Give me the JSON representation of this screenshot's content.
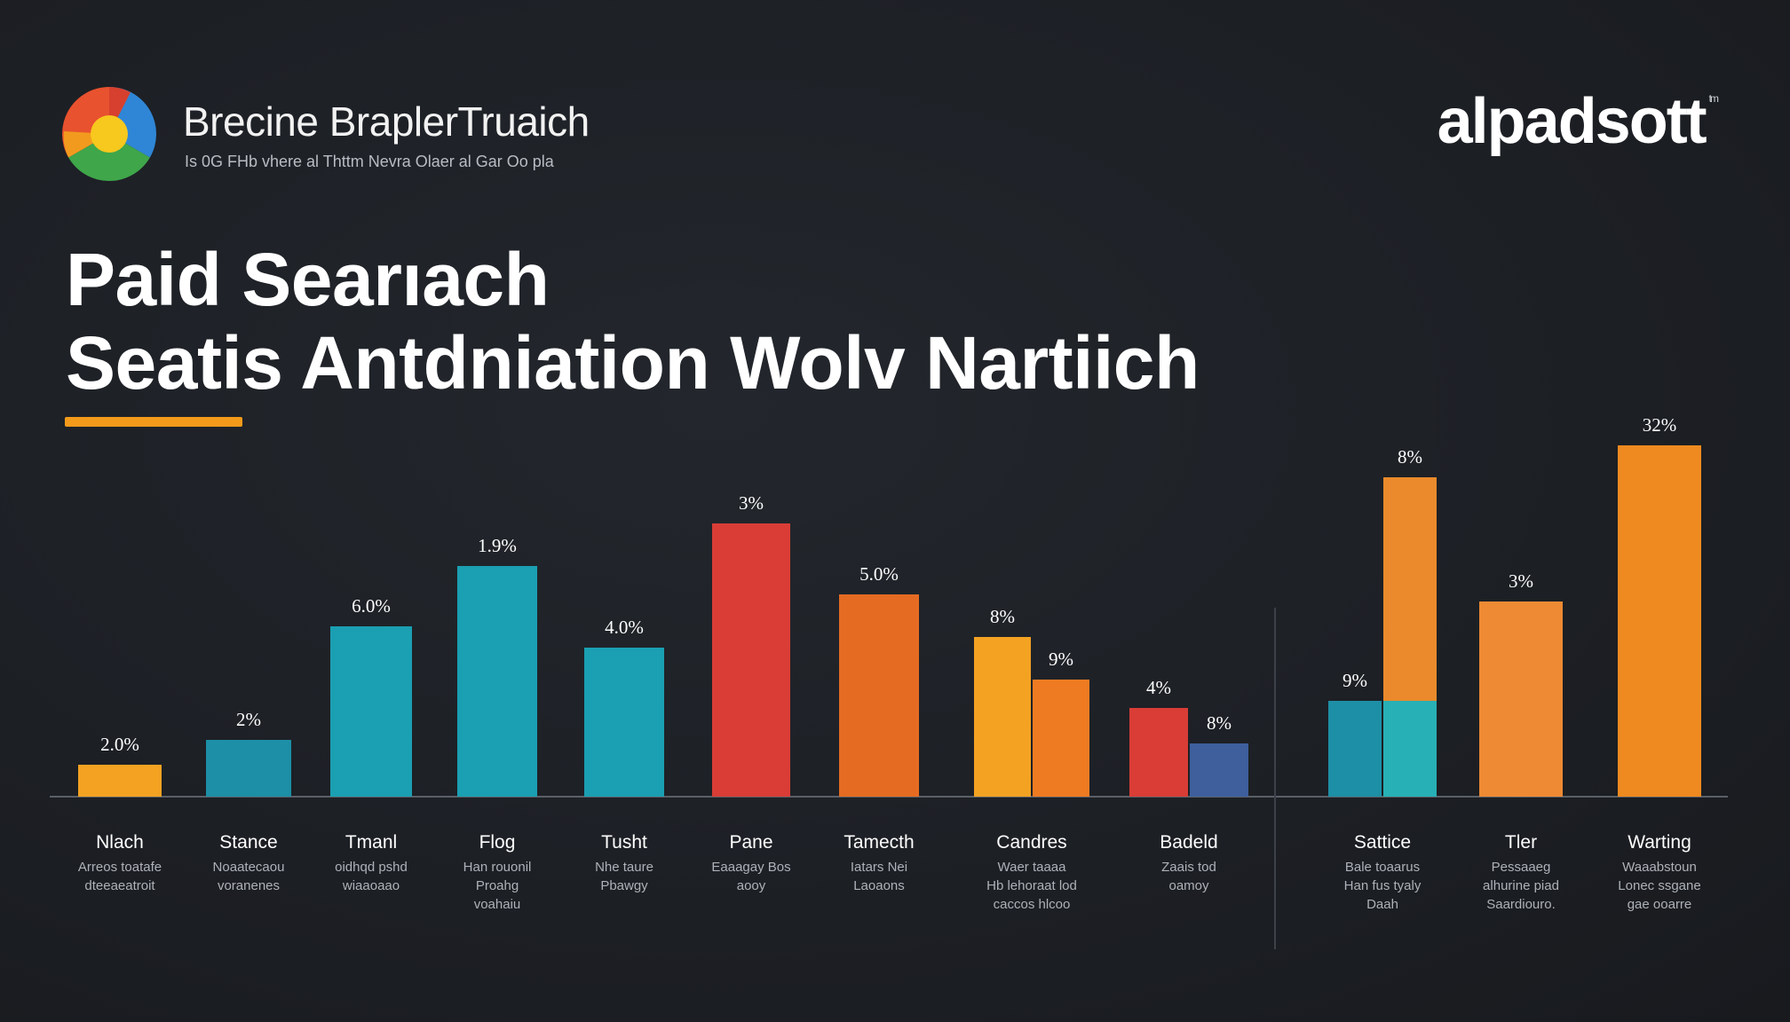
{
  "header": {
    "brand_name": "Brecine BraplerTruaich",
    "brand_tagline": "Is 0G FHb vhere al Thttm Nevra Olaer al Gar Oo pla",
    "company_logo": "alpadsott",
    "company_logo_mark": "tm"
  },
  "title": {
    "line1": "Paid Searıach",
    "line2": "Seatis Antdniation Wolv Nartiich"
  },
  "colors": {
    "background": "#1c1f24",
    "accent": "#f39a1b",
    "teal": "#1d9cb0",
    "red": "#d93d36",
    "orange": "#ea7a24",
    "yellow": "#f3a222",
    "blue": "#3e5f9c"
  },
  "chart_data": {
    "type": "bar",
    "ylim": [
      0,
      100
    ],
    "groups": [
      {
        "name": "Nlach",
        "desc": [
          "Arreos toatafe",
          "dteeaeatroit"
        ],
        "bars": [
          {
            "value": 9,
            "label": "2.0%",
            "color": "#f3a222"
          }
        ]
      },
      {
        "name": "Stance",
        "desc": [
          "Noaatecaou",
          "voranenes"
        ],
        "bars": [
          {
            "value": 16,
            "label": "2%",
            "color": "#1d8fa6"
          }
        ]
      },
      {
        "name": "Tmanl",
        "desc": [
          "oidhqd pshd",
          "wiaaoaao"
        ],
        "bars": [
          {
            "value": 48,
            "label": "6.0%",
            "color": "#1b9fb2"
          }
        ]
      },
      {
        "name": "Flog",
        "desc": [
          "Han rouonil",
          "Proahg",
          "voahaiu"
        ],
        "bars": [
          {
            "value": 65,
            "label": "1.9%",
            "color": "#1b9fb2"
          }
        ]
      },
      {
        "name": "Tusht",
        "desc": [
          "Nhe taure",
          "Pbawgy"
        ],
        "bars": [
          {
            "value": 42,
            "label": "4.0%",
            "color": "#1b9fb2"
          }
        ]
      },
      {
        "name": "Pane",
        "desc": [
          "Eaaagay Bos",
          "aooy"
        ],
        "bars": [
          {
            "value": 77,
            "label": "3%",
            "color": "#d93d36"
          }
        ]
      },
      {
        "name": "Tamecth",
        "desc": [
          "Iatars Nei",
          "Laoaons"
        ],
        "bars": [
          {
            "value": 57,
            "label": "5.0%",
            "color": "#e56b23"
          }
        ]
      },
      {
        "name": "Candres",
        "desc": [
          "Waer taaaa",
          "Hb lehoraat lod",
          "caccos hlcoo"
        ],
        "bars": [
          {
            "value": 45,
            "label": "8%",
            "color": "#f3a222"
          },
          {
            "value": 33,
            "label": "9%",
            "color": "#ee7b22"
          }
        ]
      },
      {
        "name": "Badeld",
        "desc": [
          "Zaais tod",
          "oamoy"
        ],
        "bars": [
          {
            "value": 25,
            "label": "4%",
            "color": "#d93d36"
          },
          {
            "value": 15,
            "label": "8%",
            "color": "#3e5f9c"
          }
        ]
      },
      {
        "name": "Sattice",
        "desc": [
          "Bale toaarus",
          "Han fus tyaly",
          "Daah"
        ],
        "bars": [
          {
            "value": 27,
            "label": "9%",
            "color": "#1d8fa6"
          },
          {
            "value": 90,
            "label": "8%",
            "color": "#ea8a2c",
            "lower_value": 27,
            "lower_color": "#27b0b5"
          }
        ]
      },
      {
        "name": "Tler",
        "desc": [
          "Pessaaeg",
          "alhurine piad",
          "Saardiouro."
        ],
        "bars": [
          {
            "value": 55,
            "label": "3%",
            "color": "#ee8a33"
          }
        ]
      },
      {
        "name": "Warting",
        "desc": [
          "Waaabstoun",
          "Lonec ssgane",
          "gae ooarre"
        ],
        "bars": [
          {
            "value": 99,
            "label": "32%",
            "color": "#ef8a20"
          }
        ]
      }
    ]
  }
}
